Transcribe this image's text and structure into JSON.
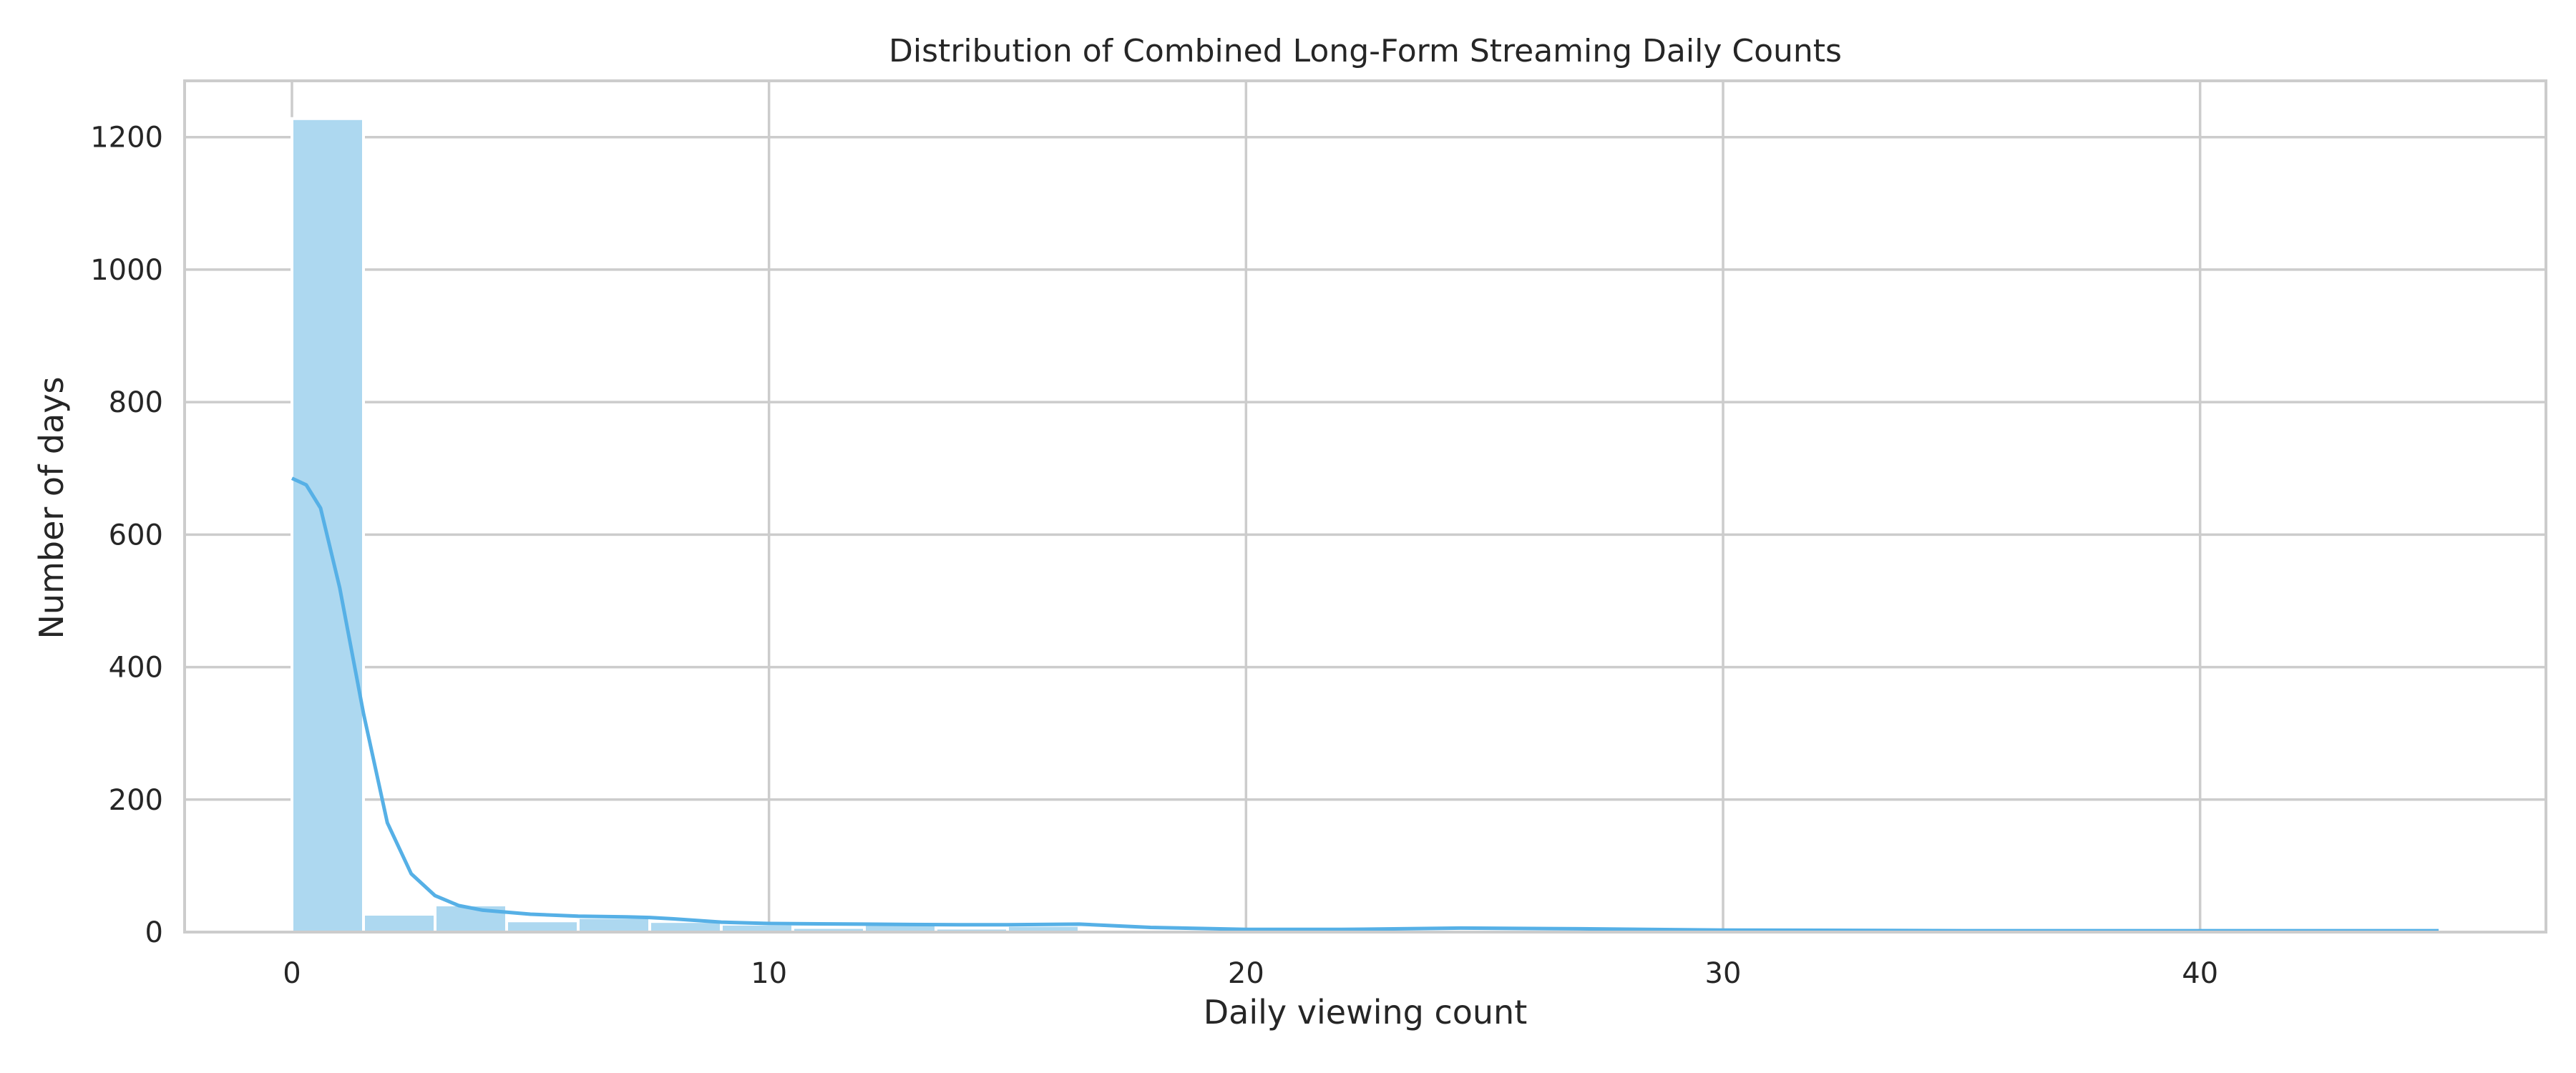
{
  "chart_data": {
    "type": "histogram",
    "title": "Distribution of Combined Long-Form Streaming Daily Counts",
    "xlabel": "Daily viewing count",
    "ylabel": "Number of days",
    "xlim": [
      -2.25,
      47.25
    ],
    "ylim": [
      0,
      1285
    ],
    "xticks": [
      0,
      10,
      20,
      30,
      40
    ],
    "yticks": [
      0,
      200,
      400,
      600,
      800,
      1000,
      1200
    ],
    "grid": true,
    "legend": null,
    "bin_width": 1.5,
    "bins": [
      {
        "x0": 0.0,
        "x1": 1.5,
        "count": 1228
      },
      {
        "x0": 1.5,
        "x1": 3.0,
        "count": 27
      },
      {
        "x0": 3.0,
        "x1": 4.5,
        "count": 41
      },
      {
        "x0": 4.5,
        "x1": 6.0,
        "count": 17
      },
      {
        "x0": 6.0,
        "x1": 7.5,
        "count": 22
      },
      {
        "x0": 7.5,
        "x1": 9.0,
        "count": 16
      },
      {
        "x0": 9.0,
        "x1": 10.5,
        "count": 12
      },
      {
        "x0": 10.5,
        "x1": 12.0,
        "count": 7
      },
      {
        "x0": 12.0,
        "x1": 13.5,
        "count": 12
      },
      {
        "x0": 13.5,
        "x1": 15.0,
        "count": 6
      },
      {
        "x0": 15.0,
        "x1": 16.5,
        "count": 10
      },
      {
        "x0": 16.5,
        "x1": 18.0,
        "count": 4
      },
      {
        "x0": 18.0,
        "x1": 19.5,
        "count": 3
      },
      {
        "x0": 19.5,
        "x1": 21.0,
        "count": 2
      },
      {
        "x0": 21.0,
        "x1": 22.5,
        "count": 2
      },
      {
        "x0": 22.5,
        "x1": 24.0,
        "count": 2
      },
      {
        "x0": 24.0,
        "x1": 25.5,
        "count": 3
      },
      {
        "x0": 25.5,
        "x1": 27.0,
        "count": 2
      },
      {
        "x0": 27.0,
        "x1": 28.5,
        "count": 2
      },
      {
        "x0": 28.5,
        "x1": 30.0,
        "count": 1
      },
      {
        "x0": 30.0,
        "x1": 31.5,
        "count": 1
      },
      {
        "x0": 31.5,
        "x1": 33.0,
        "count": 1
      },
      {
        "x0": 33.0,
        "x1": 34.5,
        "count": 1
      },
      {
        "x0": 34.5,
        "x1": 36.0,
        "count": 1
      },
      {
        "x0": 36.0,
        "x1": 37.5,
        "count": 1
      },
      {
        "x0": 37.5,
        "x1": 39.0,
        "count": 1
      },
      {
        "x0": 39.0,
        "x1": 40.5,
        "count": 1
      },
      {
        "x0": 40.5,
        "x1": 42.0,
        "count": 1
      },
      {
        "x0": 42.0,
        "x1": 43.5,
        "count": 1
      },
      {
        "x0": 43.5,
        "x1": 45.0,
        "count": 1
      }
    ],
    "kde": {
      "x": [
        0,
        0.3,
        0.6,
        1.0,
        1.5,
        2.0,
        2.5,
        3.0,
        3.5,
        4.0,
        5.0,
        6.0,
        7.0,
        7.5,
        8.0,
        9.0,
        10.0,
        12.0,
        14.0,
        15.0,
        16.5,
        18.0,
        20.0,
        22.0,
        24.5,
        27.0,
        30.0,
        35.0,
        40.0,
        45.0
      ],
      "y": [
        685,
        675,
        640,
        520,
        330,
        165,
        88,
        55,
        40,
        33,
        27,
        24,
        23,
        22,
        20,
        15,
        13,
        12,
        11,
        11,
        12,
        7,
        4,
        4,
        6,
        5,
        3,
        2,
        2,
        2
      ]
    },
    "colors": {
      "bar": "#add8f0",
      "kde": "#56b0e6",
      "grid": "#cccccc",
      "axes": "#cccccc"
    }
  }
}
